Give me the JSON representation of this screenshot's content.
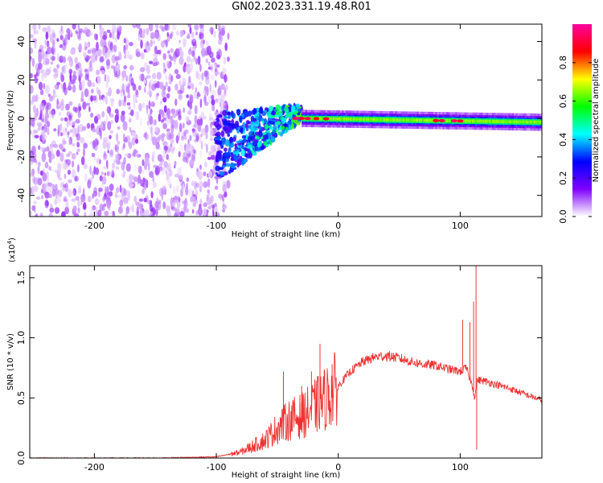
{
  "title": "GN02.2023.331.19.48.R01",
  "chart_data": [
    {
      "type": "heatmap",
      "xlabel": "Height of straight line (km)",
      "ylabel": "Frequency (Hz)",
      "xlim": [
        -253,
        167
      ],
      "ylim": [
        -51,
        49
      ],
      "x_ticks": [
        -200,
        -100,
        0,
        100
      ],
      "y_ticks": [
        -40,
        -20,
        0,
        20,
        40
      ],
      "colorbar": {
        "label": "Normalized spectral amplitude",
        "range": [
          0,
          1
        ],
        "ticks": [
          0.0,
          0.2,
          0.4,
          0.6,
          0.8
        ],
        "tick_labels": [
          "0.0",
          "0.2",
          "0.4",
          "0.6",
          "0.8"
        ],
        "colors": [
          "#ffffff",
          "#8000ff",
          "#0000ff",
          "#00ffff",
          "#00ff00",
          "#ffff00",
          "#ff0000",
          "#ff00a0"
        ]
      },
      "regions": [
        {
          "name": "noise",
          "x_range": [
            -253,
            -90
          ],
          "freq_range": [
            -51,
            49
          ],
          "amplitude": [
            0.02,
            0.12
          ]
        },
        {
          "name": "transition",
          "x_range": [
            -100,
            -30
          ],
          "center_freq": [
            -15,
            3
          ],
          "amplitude": [
            0.1,
            0.9
          ]
        },
        {
          "name": "carrier",
          "x_range": [
            -30,
            167
          ],
          "center_freq": [
            0,
            -2
          ],
          "amplitude": [
            0.45,
            1.0
          ]
        }
      ]
    },
    {
      "type": "line",
      "xlabel": "Height of straight line (km)",
      "ylabel": "SNR (10 * v/v)",
      "y_multiplier": "(x10",
      "y_multiplier_exp": "4",
      "xlim": [
        -253,
        167
      ],
      "ylim": [
        0,
        1.6
      ],
      "x_ticks": [
        -200,
        -100,
        0,
        100
      ],
      "y_ticks": [
        0.0,
        0.5,
        1.0,
        1.5
      ],
      "y_tick_labels": [
        "0.0",
        "0.5",
        "1.0",
        "1.5"
      ],
      "line_color": "#ee3333",
      "series": [
        {
          "x": [
            -253,
            -200,
            -150,
            -100,
            -80,
            -60,
            -50,
            -40,
            -30,
            -20,
            -10,
            0,
            10,
            20,
            30,
            40,
            50,
            60,
            70,
            80,
            90,
            100,
            105,
            110,
            112,
            114,
            120,
            140,
            167
          ],
          "values": [
            0.0,
            0.0,
            0.0,
            0.01,
            0.05,
            0.15,
            0.25,
            0.32,
            0.35,
            0.42,
            0.5,
            0.6,
            0.72,
            0.8,
            0.84,
            0.85,
            0.83,
            0.8,
            0.78,
            0.77,
            0.74,
            0.72,
            0.75,
            0.6,
            0.5,
            0.65,
            0.64,
            0.58,
            0.48
          ]
        }
      ],
      "spikes": [
        {
          "x": -45,
          "y": 0.72
        },
        {
          "x": -30,
          "y": 0.6
        },
        {
          "x": -22,
          "y": 0.72
        },
        {
          "x": -15,
          "y": 0.95
        },
        {
          "x": -5,
          "y": 0.78
        },
        {
          "x": 102,
          "y": 1.15
        },
        {
          "x": 108,
          "y": 1.13
        },
        {
          "x": 111,
          "y": 1.3
        },
        {
          "x": 113,
          "y": 1.62
        },
        {
          "x": 113.5,
          "y": 0.07
        }
      ]
    }
  ]
}
